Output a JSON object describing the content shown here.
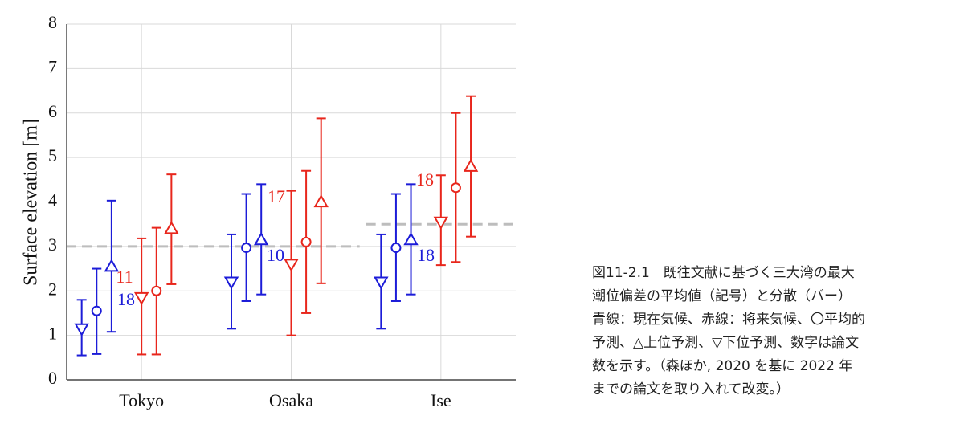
{
  "chart_data": {
    "type": "errorbar",
    "ylabel": "Surface elevation [m]",
    "categories": [
      "Tokyo",
      "Osaka",
      "Ise"
    ],
    "ylim": [
      0,
      8
    ],
    "yticks": [
      0,
      1,
      2,
      3,
      4,
      5,
      6,
      7,
      8
    ],
    "grid": true,
    "reference_lines": [
      {
        "value": 3,
        "span": [
          "Tokyo",
          "Osaka"
        ],
        "color": "#bdbdbd"
      },
      {
        "value": 3.5,
        "span": [
          "Ise"
        ],
        "color": "#bdbdbd"
      }
    ],
    "series": [
      {
        "color": "#1c1cd8",
        "counts": [
          18,
          10,
          18
        ],
        "groups": [
          {
            "marker": "triangle-down",
            "values": [
              1.15,
              2.2,
              2.2
            ],
            "low": [
              0.55,
              1.15,
              1.15
            ],
            "high": [
              1.8,
              3.27,
              3.27
            ]
          },
          {
            "marker": "circle",
            "values": [
              1.55,
              2.97,
              2.97
            ],
            "low": [
              0.58,
              1.77,
              1.77
            ],
            "high": [
              2.5,
              4.18,
              4.18
            ]
          },
          {
            "marker": "triangle-up",
            "values": [
              2.55,
              3.15,
              3.15
            ],
            "low": [
              1.08,
              1.92,
              1.92
            ],
            "high": [
              4.03,
              4.4,
              4.4
            ]
          }
        ]
      },
      {
        "color": "#e8261c",
        "counts": [
          11,
          17,
          18
        ],
        "groups": [
          {
            "marker": "triangle-down",
            "values": [
              1.85,
              2.6,
              3.55
            ],
            "low": [
              0.57,
              1.0,
              2.58
            ],
            "high": [
              3.18,
              4.25,
              4.6
            ]
          },
          {
            "marker": "circle",
            "values": [
              2.0,
              3.1,
              4.32
            ],
            "low": [
              0.57,
              1.5,
              2.65
            ],
            "high": [
              3.42,
              4.7,
              6.0
            ]
          },
          {
            "marker": "triangle-up",
            "values": [
              3.4,
              4.0,
              4.8
            ],
            "low": [
              2.15,
              2.17,
              3.22
            ],
            "high": [
              4.62,
              5.88,
              6.38
            ]
          }
        ]
      }
    ],
    "caption": [
      "図11-2.1　既往文献に基づく三大湾の最大",
      "潮位偏差の平均値（記号）と分散（バー）",
      "青線：現在気候、赤線：将来気候、〇平均的",
      "予測、△上位予測、▽下位予測、数字は論文",
      "数を示す。（森ほか, 2020 を基に 2022 年",
      "までの論文を取り入れて改変。）"
    ]
  }
}
